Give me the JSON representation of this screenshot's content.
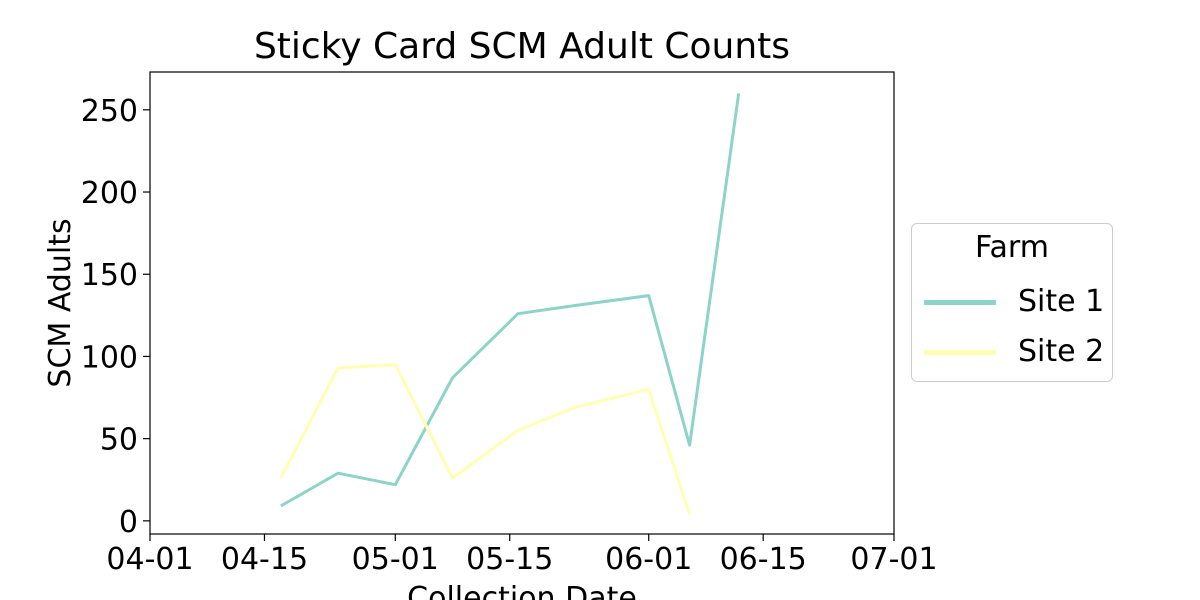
{
  "chart_data": {
    "type": "line",
    "title": "Sticky Card SCM Adult Counts",
    "xlabel": "Collection Date",
    "ylabel": "SCM Adults",
    "x_ticks": [
      "04-01",
      "04-15",
      "05-01",
      "05-15",
      "06-01",
      "06-15",
      "07-01"
    ],
    "y_ticks": [
      0,
      50,
      100,
      150,
      200,
      250
    ],
    "xlim": [
      "04-01",
      "07-01"
    ],
    "ylim": [
      -8,
      273
    ],
    "grid": false,
    "legend": {
      "title": "Farm",
      "placement": "center-right"
    },
    "series": [
      {
        "name": "Site 1",
        "color": "#8dd3c7",
        "points": [
          {
            "x": "04-17",
            "y": 9
          },
          {
            "x": "04-24",
            "y": 29
          },
          {
            "x": "05-01",
            "y": 22
          },
          {
            "x": "05-08",
            "y": 87
          },
          {
            "x": "05-16",
            "y": 126
          },
          {
            "x": "05-23",
            "y": 131
          },
          {
            "x": "06-01",
            "y": 137
          },
          {
            "x": "06-06",
            "y": 46
          },
          {
            "x": "06-12",
            "y": 260
          }
        ]
      },
      {
        "name": "Site 2",
        "color": "#ffffb3",
        "points": [
          {
            "x": "04-17",
            "y": 26
          },
          {
            "x": "04-24",
            "y": 93
          },
          {
            "x": "05-01",
            "y": 95
          },
          {
            "x": "05-08",
            "y": 26
          },
          {
            "x": "05-16",
            "y": 55
          },
          {
            "x": "05-23",
            "y": 69
          },
          {
            "x": "06-01",
            "y": 80
          },
          {
            "x": "06-06",
            "y": 4
          }
        ]
      }
    ]
  }
}
